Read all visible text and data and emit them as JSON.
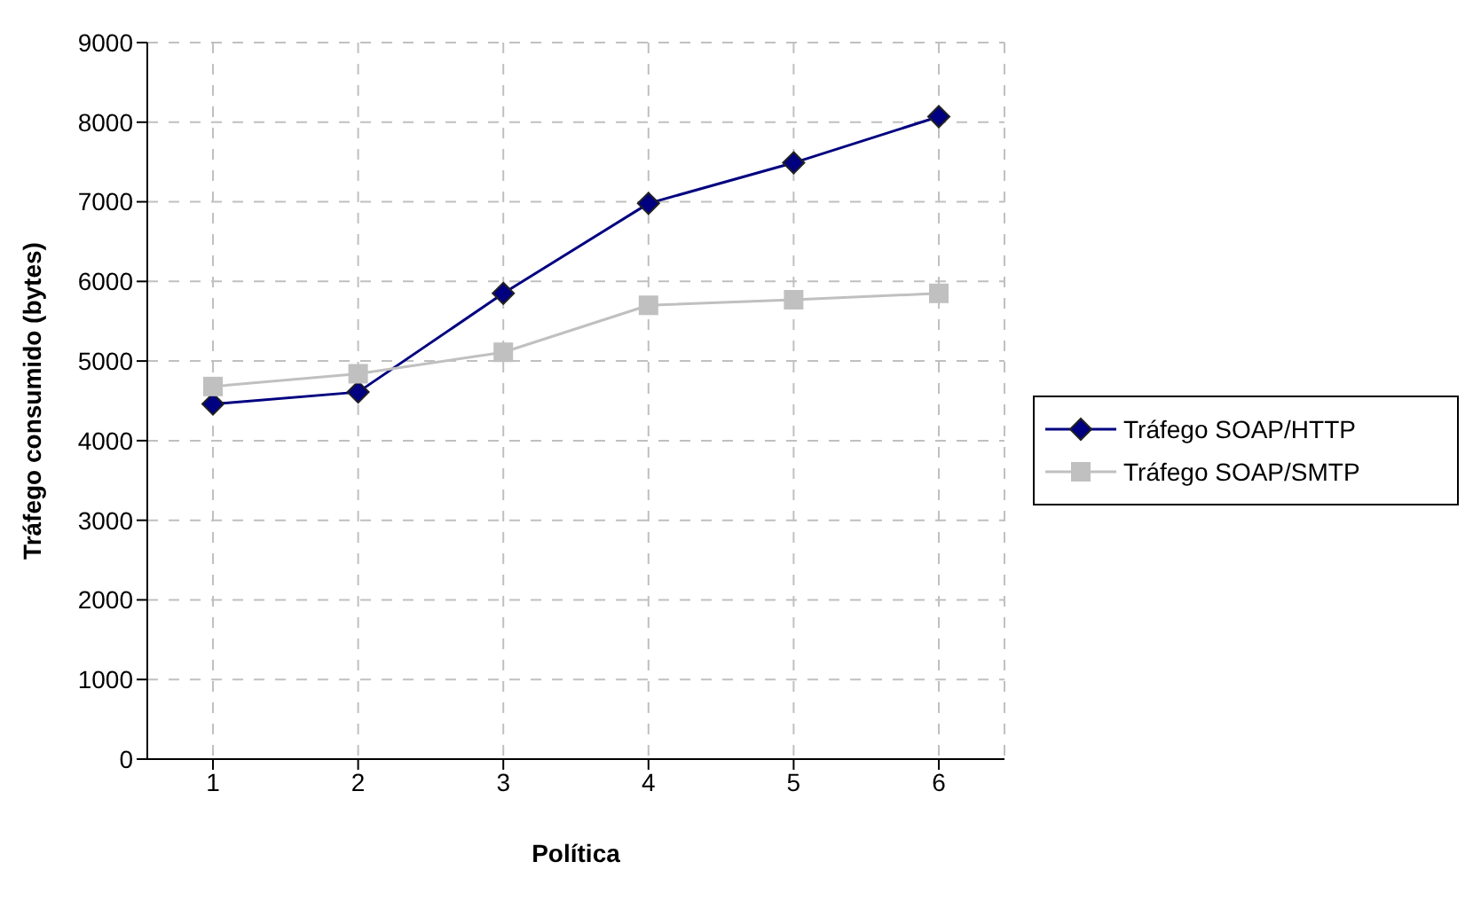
{
  "chart_data": {
    "type": "line",
    "xlabel": "Política",
    "ylabel": "Tráfego consumido (bytes)",
    "categories": [
      "1",
      "2",
      "3",
      "4",
      "5",
      "6"
    ],
    "series": [
      {
        "name": "Tráfego SOAP/HTTP",
        "color": "#000080",
        "marker": "diamond",
        "values": [
          4460,
          4610,
          5850,
          6980,
          7490,
          8070
        ]
      },
      {
        "name": "Tráfego SOAP/SMTP",
        "color": "#c0c0c0",
        "marker": "square",
        "values": [
          4680,
          4840,
          5110,
          5700,
          5770,
          5850
        ]
      }
    ],
    "ylim": [
      0,
      9000
    ],
    "yticks": [
      0,
      1000,
      2000,
      3000,
      4000,
      5000,
      6000,
      7000,
      8000,
      9000
    ],
    "grid": true,
    "legend": "right"
  }
}
